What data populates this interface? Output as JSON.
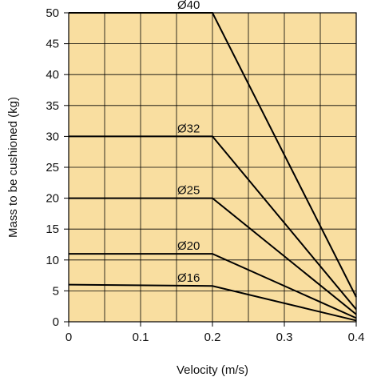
{
  "chart_data": {
    "type": "line",
    "xlabel": "Velocity (m/s)",
    "ylabel": "Mass to be cushioned  (kg)",
    "xlim": [
      0,
      0.4
    ],
    "ylim": [
      0,
      50
    ],
    "xticks": [
      "0",
      "0.1",
      "0.2",
      "0.3",
      "0.4"
    ],
    "yticks": [
      "0",
      "5",
      "10",
      "15",
      "20",
      "25",
      "30",
      "35",
      "40",
      "45",
      "50"
    ],
    "grid": true,
    "background_color": "#f9dea0",
    "line_color": "#000000",
    "series": [
      {
        "name": "Ø40",
        "x": [
          0,
          0.2,
          0.4
        ],
        "y": [
          50,
          50,
          4
        ]
      },
      {
        "name": "Ø32",
        "x": [
          0,
          0.2,
          0.4
        ],
        "y": [
          30,
          30,
          2
        ]
      },
      {
        "name": "Ø25",
        "x": [
          0,
          0.2,
          0.4
        ],
        "y": [
          20,
          20,
          1.2
        ]
      },
      {
        "name": "Ø20",
        "x": [
          0,
          0.2,
          0.4
        ],
        "y": [
          11,
          11,
          0.6
        ]
      },
      {
        "name": "Ø16",
        "x": [
          0,
          0.2,
          0.4
        ],
        "y": [
          6,
          5.8,
          0.2
        ]
      }
    ]
  }
}
